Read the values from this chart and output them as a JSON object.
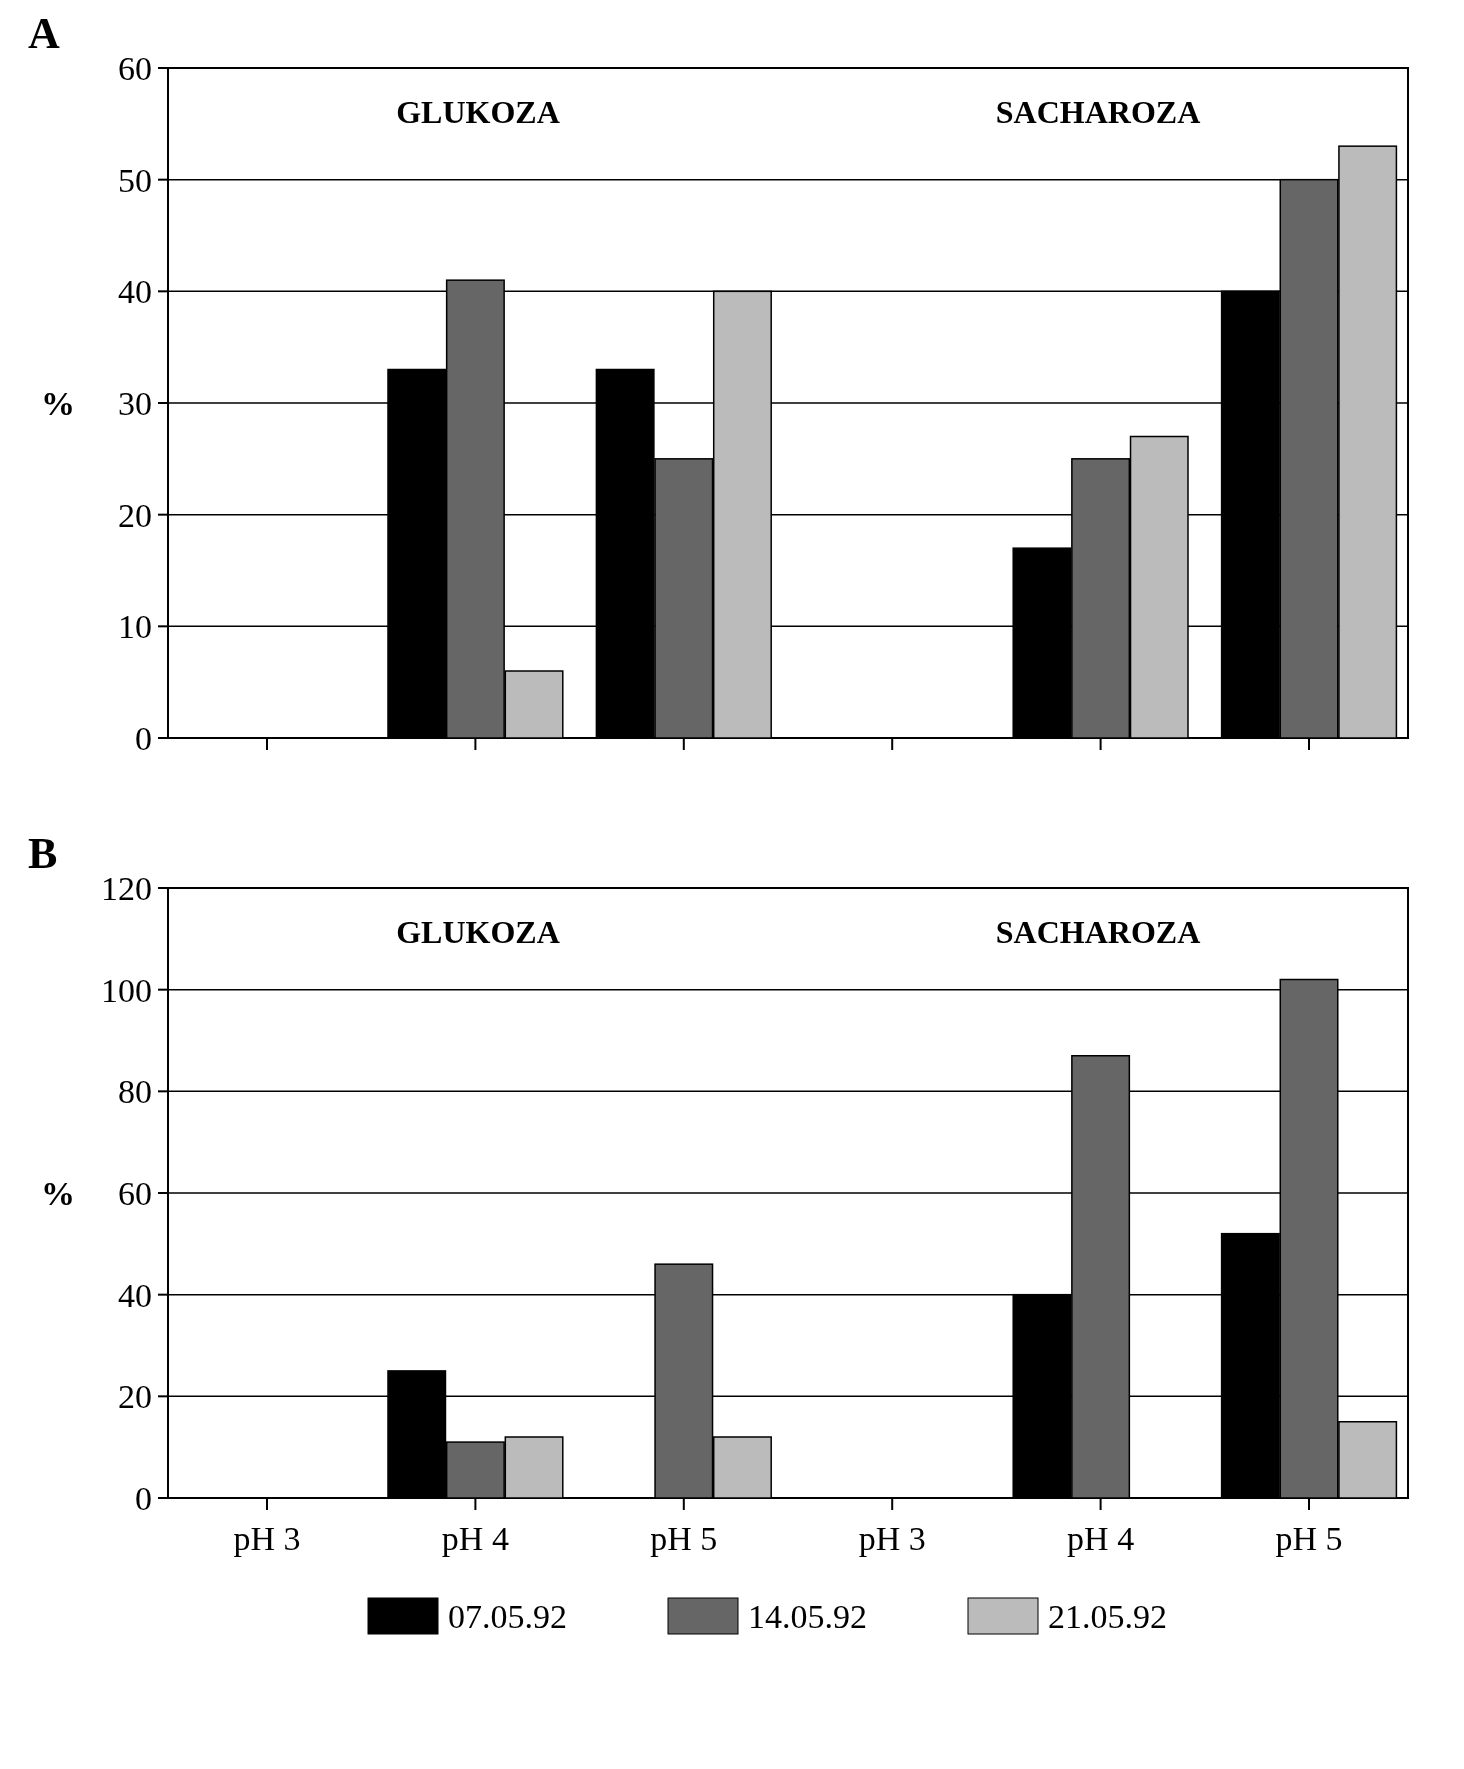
{
  "chart_data": [
    {
      "type": "bar",
      "title": "A",
      "ylabel": "%",
      "categories": [
        null,
        null,
        null,
        null,
        null,
        null
      ],
      "series": [
        {
          "color": "#000000",
          "values": [
            0,
            33,
            33,
            0,
            17,
            40
          ]
        },
        {
          "color": "#666666",
          "values": [
            0,
            41,
            25,
            0,
            25,
            50
          ]
        },
        {
          "color": "#bbbbbb",
          "values": [
            0,
            6,
            40,
            0,
            27,
            53
          ]
        }
      ],
      "ylim": [
        0,
        60
      ],
      "yticks": [
        0,
        10,
        20,
        30,
        40,
        50,
        60
      ],
      "grid": "y",
      "tick_labels": "y",
      "annotations": [
        "GLUKOZA",
        "SACHAROZA"
      ]
    },
    {
      "type": "bar",
      "title": "B",
      "ylabel": "%",
      "categories": [
        "pH 3",
        "pH 4",
        "pH 5",
        "pH 3",
        "pH 4",
        "pH 5"
      ],
      "series": [
        {
          "name": "07.05.92",
          "color": "#000000",
          "values": [
            0,
            25,
            0,
            0,
            40,
            52
          ]
        },
        {
          "name": "14.05.92",
          "color": "#666666",
          "values": [
            0,
            11,
            46,
            0,
            87,
            102
          ]
        },
        {
          "name": "21.05.92",
          "color": "#bbbbbb",
          "values": [
            0,
            12,
            12,
            0,
            0,
            15
          ]
        }
      ],
      "ylim": [
        0,
        120
      ],
      "yticks": [
        0,
        20,
        40,
        60,
        80,
        100,
        120
      ],
      "grid": "y",
      "legend": "bottom",
      "annotations": [
        "GLUKOZA",
        "SACHAROZA"
      ]
    }
  ]
}
